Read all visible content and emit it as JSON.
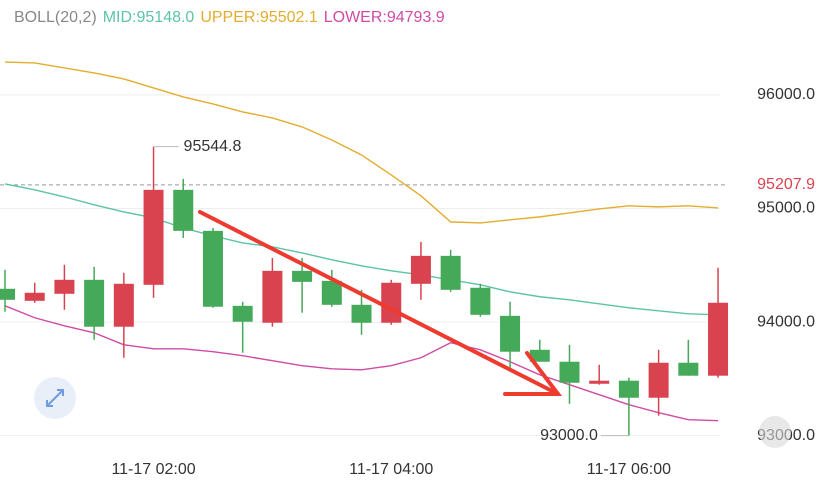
{
  "chart_data": {
    "type": "candlestick",
    "indicator": "BOLL(20,2)",
    "categories": [
      null,
      null,
      null,
      null,
      null,
      "11-17 02:00",
      null,
      null,
      null,
      null,
      null,
      null,
      null,
      "11-17 04:00",
      null,
      null,
      null,
      null,
      null,
      null,
      null,
      "11-17 06:00",
      null,
      null,
      null
    ],
    "open": [
      94293,
      94187,
      94249,
      94372,
      93959,
      94328,
      95164,
      94803,
      94143,
      93994,
      94451,
      94363,
      94152,
      93994,
      94337,
      94583,
      94302,
      94055,
      93756,
      93651,
      93457,
      93484,
      93334,
      93642,
      93528
    ],
    "high": [
      94460,
      94346,
      94504,
      94486,
      94434,
      95544.8,
      95260,
      94829,
      94179,
      94565,
      94565,
      94460,
      94284,
      94372,
      94706,
      94636,
      94337,
      94179,
      93844,
      93800,
      93624,
      93510,
      93756,
      93844,
      94478
    ],
    "low": [
      94091,
      94170,
      94108,
      93844,
      93686,
      94214,
      94741,
      94126,
      93730,
      93959,
      94082,
      94134,
      93888,
      93976,
      94196,
      94266,
      94047,
      93598,
      93651,
      93281,
      93449,
      93000,
      93176,
      93528,
      93510
    ],
    "close": [
      94196,
      94258,
      94372,
      93959,
      94337,
      95164,
      94803,
      94135,
      94003,
      94451,
      94354,
      94152,
      93994,
      94346,
      94583,
      94284,
      94064,
      93739,
      93651,
      93466,
      93484,
      93334,
      93642,
      93528,
      94170
    ],
    "high_value_labels": [
      null,
      null,
      null,
      null,
      null,
      "95544.8",
      null,
      null,
      null,
      null,
      null,
      null,
      null,
      null,
      null,
      null,
      null,
      null,
      null,
      null,
      null,
      null,
      null,
      null,
      null
    ],
    "low_value_labels": [
      null,
      null,
      null,
      null,
      null,
      null,
      null,
      null,
      null,
      null,
      null,
      null,
      null,
      null,
      null,
      null,
      null,
      null,
      null,
      null,
      null,
      "93000.0",
      null,
      null,
      null
    ],
    "up_color": "#d9434f",
    "down_color": "#45a95a",
    "series": [
      {
        "name": "MID:95148.0",
        "color": "#5cc4a6",
        "values": [
          95216,
          95164,
          95102,
          95032,
          94970,
          94917,
          94829,
          94759,
          94697,
          94662,
          94609,
          94548,
          94495,
          94451,
          94416,
          94372,
          94328,
          94266,
          94223,
          94196,
          94161,
          94126,
          94099,
          94073,
          94064
        ]
      },
      {
        "name": "UPPER:95502.1",
        "color": "#e3ad2e",
        "values": [
          96289,
          96281,
          96237,
          96193,
          96140,
          96061,
          95982,
          95920,
          95850,
          95797,
          95718,
          95603,
          95471,
          95295,
          95111,
          94882,
          94873,
          94900,
          94926,
          94961,
          94996,
          95023,
          95014,
          95023,
          95005
        ]
      },
      {
        "name": "LOWER:94793.9",
        "color": "#cf4ba6",
        "values": [
          94143,
          94038,
          93967,
          93906,
          93800,
          93765,
          93765,
          93739,
          93704,
          93660,
          93616,
          93589,
          93580,
          93616,
          93686,
          93818,
          93756,
          93651,
          93536,
          93449,
          93361,
          93273,
          93202,
          93141,
          93132
        ]
      }
    ],
    "last_price": 95207.9,
    "ylim": [
      92830,
      96835
    ],
    "yticks": [
      {
        "value": 93000,
        "label": "93000.0"
      },
      {
        "value": 94000,
        "label": "94000.0"
      },
      {
        "value": 95000,
        "label": "95000.0"
      },
      {
        "value": 96000,
        "label": "96000.0"
      }
    ],
    "grid": true
  }
}
